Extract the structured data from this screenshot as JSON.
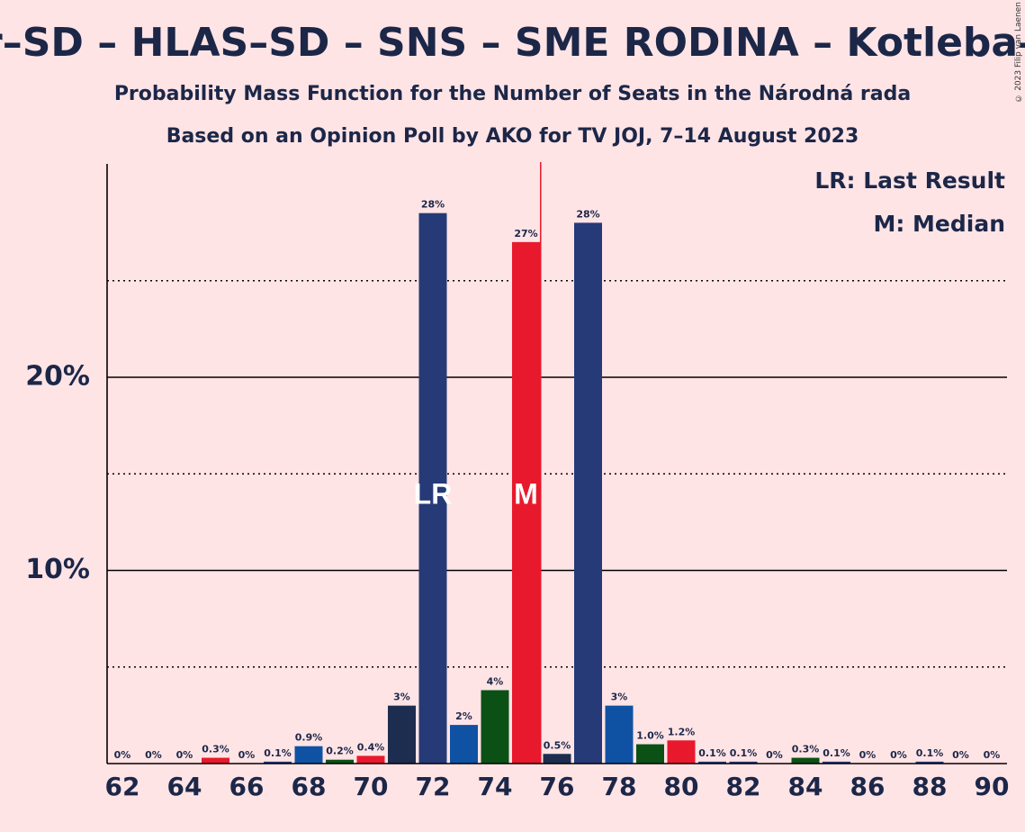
{
  "title": "Smer–SD – HLAS–SD – SNS – SME RODINA – Kotleba–ĽSNS",
  "subtitle": "Probability Mass Function for the Number of Seats in the Národná rada",
  "subtitle2": "Based on an Opinion Poll by AKO for TV JOJ, 7–14 August 2023",
  "copyright": "© 2023 Filip van Laenen",
  "legend": {
    "lr": "LR: Last Result",
    "m": "M: Median"
  },
  "colors": {
    "background": "#ffe4e6",
    "navy": "#253a77",
    "dark_navy": "#1c2d50",
    "blue": "#0f52a3",
    "green": "#0b5115",
    "red": "#e8192c"
  },
  "chart_data": {
    "type": "bar",
    "x": [
      62,
      63,
      64,
      65,
      66,
      67,
      68,
      69,
      70,
      71,
      72,
      73,
      74,
      75,
      76,
      77,
      78,
      79,
      80,
      81,
      82,
      83,
      84,
      85,
      86,
      87,
      88,
      89,
      90
    ],
    "values": [
      0,
      0,
      0,
      0.3,
      0,
      0.1,
      0.9,
      0.2,
      0.4,
      3,
      28.5,
      2,
      3.8,
      27,
      0.5,
      28,
      3,
      1.0,
      1.2,
      0.1,
      0.1,
      0,
      0.3,
      0.1,
      0,
      0,
      0.1,
      0,
      0
    ],
    "data_labels": [
      "0%",
      "0%",
      "0%",
      "0.3%",
      "0%",
      "0.1%",
      "0.9%",
      "0.2%",
      "0.4%",
      "3%",
      "28%",
      "2%",
      "4%",
      "27%",
      "0.5%",
      "28%",
      "3%",
      "1.0%",
      "1.2%",
      "0.1%",
      "0.1%",
      "0%",
      "0.3%",
      "0.1%",
      "0%",
      "0%",
      "0.1%",
      "0%",
      "0%"
    ],
    "bar_colors": [
      "navy",
      "navy",
      "navy",
      "red",
      "navy",
      "navy",
      "blue",
      "green",
      "red",
      "dark_navy",
      "navy",
      "blue",
      "green",
      "red",
      "dark_navy",
      "navy",
      "blue",
      "green",
      "red",
      "navy",
      "navy",
      "navy",
      "green",
      "navy",
      "navy",
      "navy",
      "navy",
      "navy",
      "navy"
    ],
    "x_tick_labels": [
      "62",
      "64",
      "66",
      "68",
      "70",
      "72",
      "74",
      "76",
      "78",
      "80",
      "82",
      "84",
      "86",
      "88",
      "90"
    ],
    "y_tick_labels": [
      "10%",
      "20%"
    ],
    "ylim": [
      0,
      31
    ],
    "last_result": 72,
    "last_result_label": "LR",
    "median": 75,
    "median_label": "M",
    "majority_line": 75.5
  }
}
